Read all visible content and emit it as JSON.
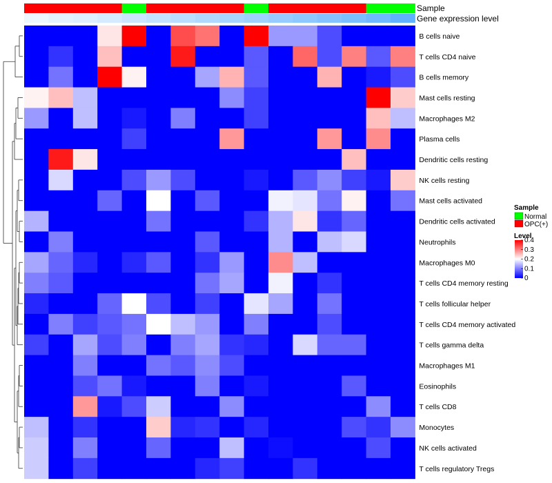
{
  "chart_data": {
    "type": "heatmap",
    "annotations": {
      "sample_label": "Sample",
      "expression_label": "Gene expression level",
      "sample_groups": [
        "OPC(+)",
        "OPC(+)",
        "OPC(+)",
        "OPC(+)",
        "Normal",
        "OPC(+)",
        "OPC(+)",
        "OPC(+)",
        "OPC(+)",
        "Normal",
        "OPC(+)",
        "OPC(+)",
        "OPC(+)",
        "OPC(+)",
        "Normal",
        "Normal"
      ],
      "expression_levels": [
        0.02,
        0.08,
        0.12,
        0.18,
        0.24,
        0.3,
        0.36,
        0.42,
        0.48,
        0.54,
        0.6,
        0.66,
        0.72,
        0.78,
        0.86,
        0.96
      ]
    },
    "rows": [
      "B cells naive",
      "T cells CD4 naive",
      "B cells memory",
      "Mast cells resting",
      "Macrophages M2",
      "Plasma cells",
      "Dendritic cells resting",
      "NK cells resting",
      "Mast cells activated",
      "Dendritic cells activated",
      "Neutrophils",
      "Macrophages M0",
      "T cells CD4 memory resting",
      "T cells follicular helper",
      "T cells CD4 memory activated",
      "T cells gamma delta",
      "Macrophages M1",
      "Eosinophils",
      "T cells CD8",
      "Monocytes",
      "NK cells activated",
      "T cells regulatory  Tregs"
    ],
    "values": [
      [
        0,
        0,
        0,
        0.22,
        0.4,
        0,
        0.34,
        0.31,
        0,
        0.4,
        0.12,
        0.12,
        0.06,
        0,
        0,
        0
      ],
      [
        0,
        0.04,
        0,
        0.25,
        0,
        0,
        0.38,
        0,
        0,
        0.07,
        0,
        0.32,
        0.06,
        0.3,
        0.07,
        0.3
      ],
      [
        0,
        0.09,
        0,
        0.4,
        0.21,
        0,
        0,
        0.13,
        0.26,
        0.07,
        0,
        0,
        0.26,
        0,
        0.02,
        0.06
      ],
      [
        0.21,
        0.25,
        0.15,
        0,
        0,
        0,
        0,
        0,
        0.11,
        0.05,
        0,
        0,
        0,
        0,
        0.4,
        0.24
      ],
      [
        0.12,
        0,
        0.15,
        0,
        0.02,
        0,
        0.1,
        0,
        0,
        0.05,
        0,
        0,
        0,
        0,
        0.25,
        0.15
      ],
      [
        0,
        0,
        0,
        0,
        0.05,
        0,
        0,
        0,
        0.28,
        0,
        0,
        0,
        0.28,
        0,
        0.29,
        0
      ],
      [
        0,
        0.38,
        0.22,
        0,
        0,
        0,
        0,
        0,
        0,
        0,
        0,
        0,
        0,
        0.25,
        0,
        0
      ],
      [
        0,
        0.17,
        0,
        0,
        0.06,
        0.12,
        0.06,
        0,
        0,
        0.02,
        0,
        0.07,
        0.11,
        0.05,
        0.02,
        0.24
      ],
      [
        0,
        0,
        0,
        0.08,
        0,
        0.2,
        0,
        0.07,
        0,
        0,
        0.19,
        0.18,
        0.09,
        0.21,
        0,
        0.09
      ],
      [
        0.14,
        0,
        0,
        0,
        0,
        0.09,
        0,
        0,
        0,
        0.04,
        0.14,
        0.22,
        0.04,
        0.08,
        0,
        0
      ],
      [
        0,
        0.1,
        0,
        0,
        0,
        0,
        0,
        0.07,
        0,
        0,
        0.14,
        0,
        0.15,
        0.17,
        0,
        0
      ],
      [
        0.13,
        0.08,
        0.03,
        0,
        0.03,
        0.07,
        0,
        0.04,
        0.12,
        0,
        0.29,
        0.15,
        0,
        0,
        0,
        0
      ],
      [
        0.1,
        0.07,
        0,
        0,
        0,
        0,
        0,
        0.09,
        0.13,
        0,
        0.19,
        0,
        0.04,
        0,
        0,
        0
      ],
      [
        0.03,
        0,
        0,
        0.08,
        0.2,
        0.06,
        0,
        0.05,
        0,
        0.18,
        0.13,
        0,
        0.09,
        0,
        0,
        0
      ],
      [
        0,
        0.1,
        0.05,
        0.07,
        0.09,
        0.2,
        0.15,
        0.12,
        0,
        0.1,
        0,
        0,
        0.06,
        0,
        0,
        0
      ],
      [
        0.05,
        0,
        0.13,
        0.06,
        0.1,
        0,
        0.1,
        0.13,
        0.04,
        0.03,
        0,
        0.17,
        0.08,
        0.08,
        0,
        0
      ],
      [
        0,
        0,
        0.1,
        0,
        0,
        0.09,
        0.07,
        0.11,
        0.06,
        0,
        0,
        0,
        0,
        0,
        0,
        0
      ],
      [
        0,
        0,
        0.06,
        0.09,
        0.02,
        0,
        0,
        0.1,
        0,
        0.02,
        0,
        0,
        0,
        0.07,
        0,
        0
      ],
      [
        0,
        0,
        0.28,
        0.02,
        0.06,
        0.16,
        0,
        0,
        0.11,
        0,
        0,
        0,
        0,
        0,
        0.11,
        0
      ],
      [
        0.15,
        0,
        0.04,
        0,
        0,
        0.24,
        0.03,
        0.04,
        0,
        0.03,
        0,
        0,
        0,
        0.06,
        0.04,
        0.11
      ],
      [
        0.16,
        0,
        0.1,
        0,
        0,
        0.08,
        0,
        0,
        0.15,
        0,
        0.01,
        0,
        0,
        0,
        0.06,
        0
      ],
      [
        0.16,
        0,
        0.05,
        0,
        0,
        0,
        0,
        0.03,
        0.05,
        0,
        0,
        0.04,
        0,
        0,
        0,
        0
      ]
    ],
    "value_range": [
      0,
      0.4
    ],
    "legend": {
      "sample_title": "Sample",
      "sample_entries": [
        {
          "label": "Normal",
          "color": "#00ff00"
        },
        {
          "label": "OPC(+)",
          "color": "#ff0000"
        }
      ],
      "level_title": "Level",
      "level_ticks": [
        0,
        0.1,
        0.2,
        0.3,
        0.4
      ],
      "level_tick_labels": [
        "0",
        "0.1",
        "0.2",
        "0.3",
        "0.4"
      ]
    },
    "colors": {
      "low": "#0000ff",
      "mid": "#ffffff",
      "high": "#ff0000",
      "normal": "#00ff00",
      "opc": "#ff0000"
    }
  }
}
